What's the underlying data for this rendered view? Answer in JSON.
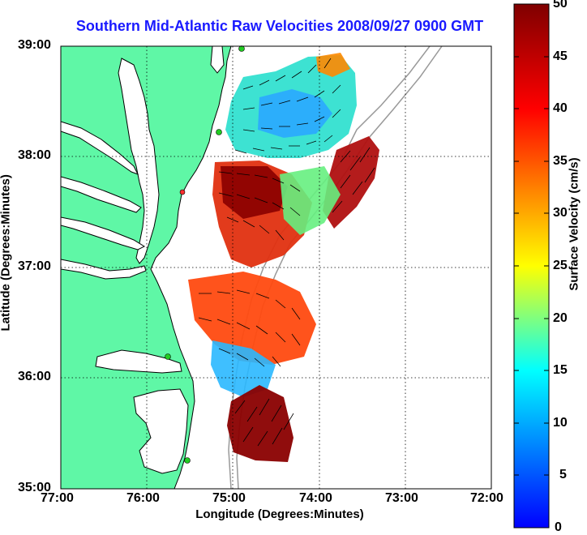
{
  "title": "Southern Mid-Atlantic Raw Velocities 2008/09/27 0900 GMT",
  "x_axis_label": "Longitude (Degrees:Minutes)",
  "y_axis_label": "Latitude (Degrees:Minutes)",
  "x_ticks": [
    "77:00",
    "76:00",
    "75:00",
    "74:00",
    "73:00",
    "72:00"
  ],
  "y_ticks": [
    "39:00",
    "38:00",
    "37:00",
    "36:00",
    "35:00"
  ],
  "colorbar": {
    "label": "Surface Velocity (cm/s)",
    "ticks": [
      "50",
      "45",
      "40",
      "35",
      "30",
      "25",
      "20",
      "15",
      "10",
      "5",
      "0"
    ],
    "min": 0,
    "max": 50,
    "colors": [
      "#0000ff",
      "#00aaff",
      "#00ffff",
      "#7fff7f",
      "#ffff00",
      "#ff7f00",
      "#ff0000",
      "#7f0000"
    ]
  },
  "colors": {
    "land": "#5ff7a6",
    "water": "#ffffff",
    "coast": "#000000",
    "title": "#1a1aff",
    "bathymetry": "#999999",
    "station": "#22cc22"
  }
}
